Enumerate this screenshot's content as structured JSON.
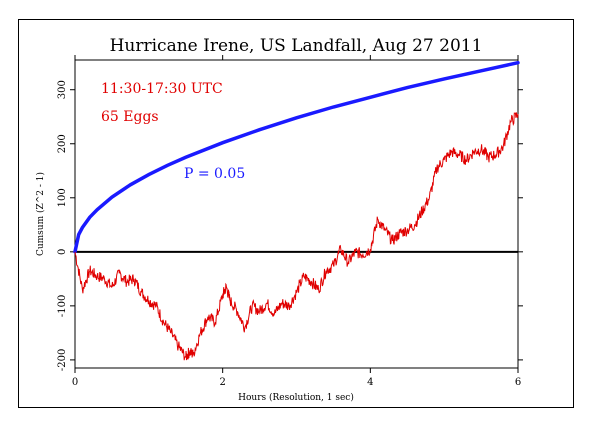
{
  "chart_data": {
    "type": "line",
    "title": "Hurricane Irene, US Landfall, Aug 27 2011",
    "xlabel": "Hours (Resolution, 1 sec)",
    "ylabel": "Cumsum (Z^2 - 1)",
    "xlim": [
      0,
      6
    ],
    "ylim": [
      -215,
      355
    ],
    "x_ticks": [
      0,
      2,
      4,
      6
    ],
    "y_ticks": [
      -200,
      -100,
      0,
      100,
      200,
      300
    ],
    "annotations": {
      "time_range": "11:30-17:30 UTC",
      "eggs": "65 Eggs",
      "p_label": "P = 0.05"
    },
    "colors": {
      "envelope": "#1a1aff",
      "data": "#e00000",
      "zero": "#000000",
      "text_red": "#e00000",
      "text_blue": "#1a1aff"
    },
    "series": [
      {
        "role": "envelope",
        "x": [
          0,
          0.05,
          0.1,
          0.2,
          0.3,
          0.5,
          0.75,
          1,
          1.25,
          1.5,
          2,
          2.5,
          3,
          3.5,
          4,
          4.5,
          5,
          5.5,
          6
        ],
        "y": [
          0,
          32,
          45,
          64,
          78,
          101,
          124,
          143,
          160,
          175,
          202,
          226,
          248,
          268,
          286,
          304,
          320,
          335,
          350
        ]
      },
      {
        "role": "data",
        "x": [
          0,
          0.1,
          0.2,
          0.3,
          0.4,
          0.5,
          0.6,
          0.7,
          0.8,
          0.9,
          1.0,
          1.1,
          1.2,
          1.3,
          1.4,
          1.5,
          1.55,
          1.6,
          1.7,
          1.8,
          1.9,
          2.0,
          2.05,
          2.1,
          2.2,
          2.3,
          2.4,
          2.5,
          2.6,
          2.7,
          2.8,
          2.9,
          3.0,
          3.1,
          3.2,
          3.3,
          3.4,
          3.5,
          3.6,
          3.7,
          3.8,
          3.9,
          4.0,
          4.1,
          4.2,
          4.3,
          4.4,
          4.5,
          4.6,
          4.7,
          4.8,
          4.9,
          5.0,
          5.1,
          5.2,
          5.3,
          5.4,
          5.5,
          5.6,
          5.7,
          5.8,
          5.9,
          6.0
        ],
        "y": [
          0,
          -70,
          -35,
          -45,
          -50,
          -65,
          -40,
          -55,
          -50,
          -75,
          -90,
          -100,
          -130,
          -150,
          -175,
          -195,
          -185,
          -190,
          -150,
          -120,
          -130,
          -80,
          -65,
          -90,
          -110,
          -140,
          -100,
          -110,
          -95,
          -115,
          -95,
          -100,
          -75,
          -45,
          -55,
          -70,
          -35,
          -25,
          5,
          -20,
          0,
          -5,
          5,
          60,
          40,
          20,
          35,
          40,
          50,
          75,
          100,
          155,
          170,
          185,
          180,
          170,
          185,
          190,
          175,
          180,
          195,
          240,
          255
        ]
      }
    ]
  }
}
